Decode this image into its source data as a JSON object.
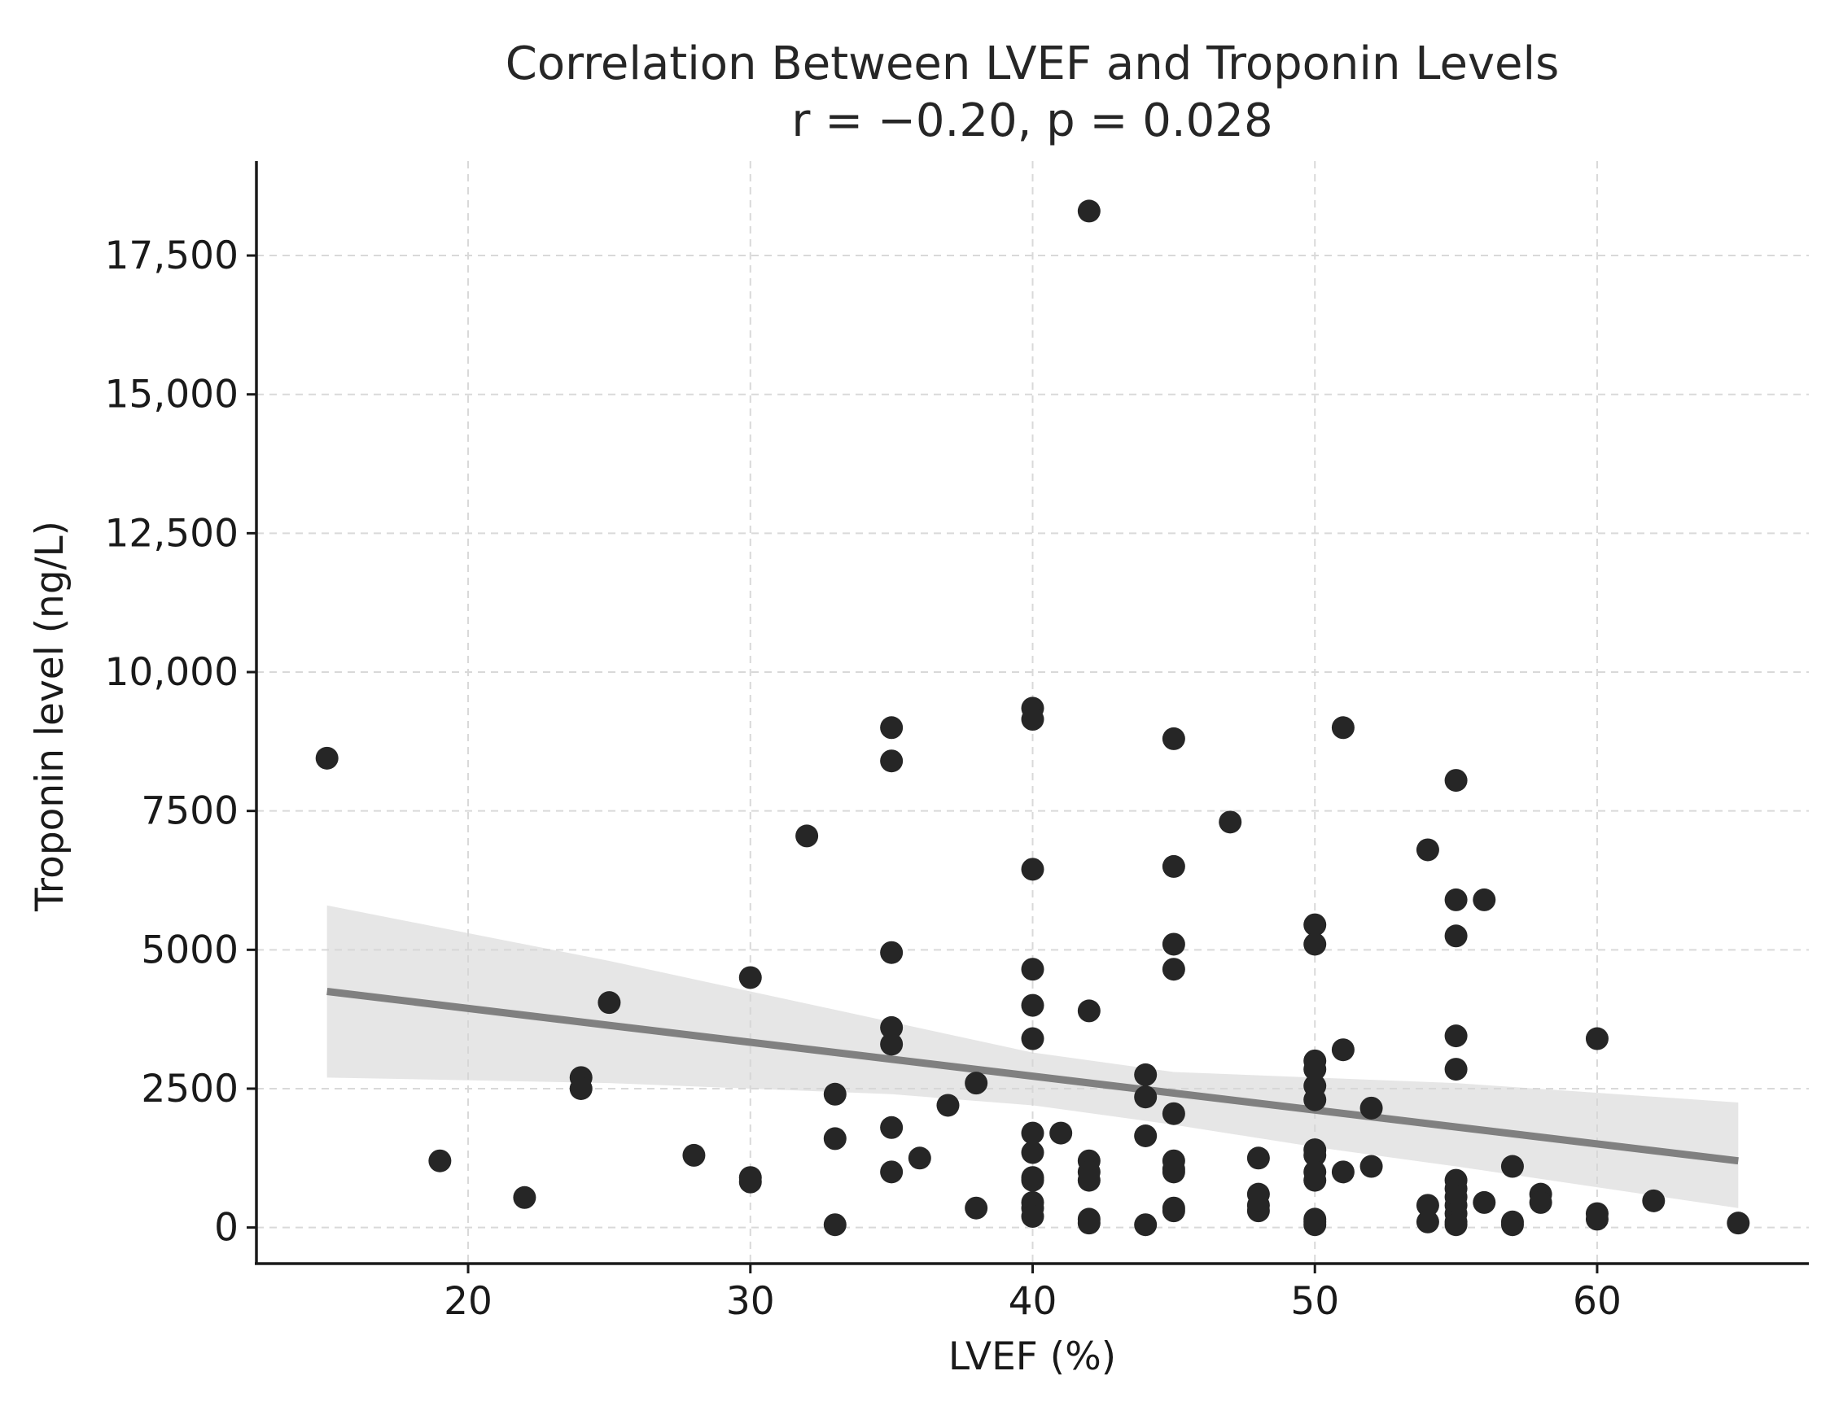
{
  "chart_data": {
    "type": "scatter",
    "title": "Correlation Between LVEF and Troponin Levels",
    "subtitle": "r = −0.20, p = 0.028",
    "xlabel": "LVEF (%)",
    "ylabel": "Troponin level (ng/L)",
    "xlim": [
      12.5,
      67.5
    ],
    "ylim": [
      -650,
      19200
    ],
    "x_ticks": [
      {
        "value": 20,
        "label": "20"
      },
      {
        "value": 30,
        "label": "30"
      },
      {
        "value": 40,
        "label": "40"
      },
      {
        "value": 50,
        "label": "50"
      },
      {
        "value": 60,
        "label": "60"
      }
    ],
    "y_ticks": [
      {
        "value": 0,
        "label": "0"
      },
      {
        "value": 2500,
        "label": "2500"
      },
      {
        "value": 5000,
        "label": "5000"
      },
      {
        "value": 7500,
        "label": "7500"
      },
      {
        "value": 10000,
        "label": "10,000"
      },
      {
        "value": 12500,
        "label": "12,500"
      },
      {
        "value": 15000,
        "label": "15,000"
      },
      {
        "value": 17500,
        "label": "17,500"
      }
    ],
    "grid": true,
    "point_color": "#262626",
    "trend_color": "#808080",
    "band_color": "#d6d6d6",
    "regression": {
      "x": [
        15,
        65
      ],
      "y": [
        4250,
        1200
      ]
    },
    "confidence_band": {
      "x": [
        15,
        25,
        35,
        40,
        45,
        50,
        55,
        65
      ],
      "upper": [
        5800,
        4800,
        3700,
        3150,
        2800,
        2700,
        2600,
        2250
      ],
      "lower": [
        2700,
        2600,
        2400,
        2200,
        1850,
        1450,
        1100,
        350
      ]
    },
    "points": [
      [
        15,
        8450
      ],
      [
        19,
        1200
      ],
      [
        22,
        540
      ],
      [
        24,
        2700
      ],
      [
        24,
        2500
      ],
      [
        25,
        4050
      ],
      [
        28,
        1300
      ],
      [
        30,
        4500
      ],
      [
        30,
        900
      ],
      [
        30,
        820
      ],
      [
        32,
        7050
      ],
      [
        33,
        2400
      ],
      [
        33,
        1600
      ],
      [
        33,
        50
      ],
      [
        35,
        9000
      ],
      [
        35,
        8400
      ],
      [
        35,
        4950
      ],
      [
        35,
        3600
      ],
      [
        35,
        3300
      ],
      [
        35,
        1800
      ],
      [
        35,
        1000
      ],
      [
        36,
        1250
      ],
      [
        37,
        2200
      ],
      [
        38,
        2600
      ],
      [
        38,
        350
      ],
      [
        40,
        9350
      ],
      [
        40,
        9150
      ],
      [
        40,
        6450
      ],
      [
        40,
        4650
      ],
      [
        40,
        4000
      ],
      [
        40,
        3400
      ],
      [
        40,
        1700
      ],
      [
        40,
        1350
      ],
      [
        40,
        900
      ],
      [
        40,
        850
      ],
      [
        40,
        450
      ],
      [
        40,
        350
      ],
      [
        40,
        200
      ],
      [
        41,
        1700
      ],
      [
        42,
        18300
      ],
      [
        42,
        3900
      ],
      [
        42,
        1200
      ],
      [
        42,
        1000
      ],
      [
        42,
        850
      ],
      [
        42,
        150
      ],
      [
        42,
        80
      ],
      [
        44,
        2750
      ],
      [
        44,
        2350
      ],
      [
        44,
        1650
      ],
      [
        44,
        50
      ],
      [
        45,
        8800
      ],
      [
        45,
        6500
      ],
      [
        45,
        5100
      ],
      [
        45,
        4650
      ],
      [
        45,
        2050
      ],
      [
        45,
        1200
      ],
      [
        45,
        1050
      ],
      [
        45,
        1000
      ],
      [
        45,
        350
      ],
      [
        45,
        300
      ],
      [
        47,
        7300
      ],
      [
        48,
        1250
      ],
      [
        48,
        600
      ],
      [
        48,
        400
      ],
      [
        48,
        300
      ],
      [
        50,
        5450
      ],
      [
        50,
        5100
      ],
      [
        50,
        3000
      ],
      [
        50,
        2850
      ],
      [
        50,
        2550
      ],
      [
        50,
        2300
      ],
      [
        50,
        1400
      ],
      [
        50,
        1300
      ],
      [
        50,
        1000
      ],
      [
        50,
        850
      ],
      [
        50,
        150
      ],
      [
        50,
        100
      ],
      [
        50,
        50
      ],
      [
        51,
        9000
      ],
      [
        51,
        3200
      ],
      [
        51,
        1000
      ],
      [
        52,
        2150
      ],
      [
        52,
        1100
      ],
      [
        54,
        6800
      ],
      [
        54,
        400
      ],
      [
        54,
        100
      ],
      [
        55,
        8050
      ],
      [
        55,
        5900
      ],
      [
        55,
        5250
      ],
      [
        55,
        3450
      ],
      [
        55,
        2850
      ],
      [
        55,
        850
      ],
      [
        55,
        700
      ],
      [
        55,
        550
      ],
      [
        55,
        400
      ],
      [
        55,
        250
      ],
      [
        55,
        100
      ],
      [
        55,
        50
      ],
      [
        56,
        5900
      ],
      [
        56,
        450
      ],
      [
        57,
        1100
      ],
      [
        57,
        100
      ],
      [
        57,
        50
      ],
      [
        58,
        600
      ],
      [
        58,
        450
      ],
      [
        60,
        3400
      ],
      [
        60,
        250
      ],
      [
        60,
        150
      ],
      [
        62,
        480
      ],
      [
        65,
        80
      ]
    ]
  }
}
